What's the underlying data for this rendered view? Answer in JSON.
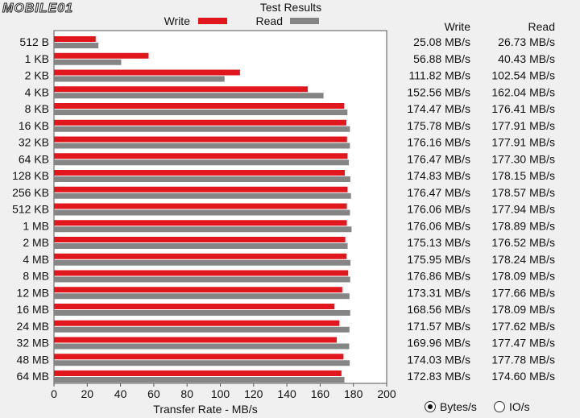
{
  "logo_text": "MOBILE01",
  "chart_data": {
    "type": "bar",
    "orientation": "horizontal",
    "title": "Test Results",
    "xlabel": "Transfer Rate - MB/s",
    "xlim": [
      0,
      200
    ],
    "xticks": [
      "0",
      "20",
      "40",
      "60",
      "80",
      "100",
      "120",
      "140",
      "160",
      "180",
      "200"
    ],
    "legend_placement": "top",
    "categories": [
      "512 B",
      "1 KB",
      "2 KB",
      "4 KB",
      "8 KB",
      "16 KB",
      "32 KB",
      "64 KB",
      "128 KB",
      "256 KB",
      "512 KB",
      "1 MB",
      "2 MB",
      "4 MB",
      "8 MB",
      "12 MB",
      "16 MB",
      "24 MB",
      "32 MB",
      "48 MB",
      "64 MB"
    ],
    "series": [
      {
        "name": "Write",
        "color": "#e0171c",
        "values": [
          25.08,
          56.88,
          111.82,
          152.56,
          174.47,
          175.78,
          176.16,
          176.47,
          174.83,
          176.47,
          176.06,
          176.06,
          175.13,
          175.95,
          176.86,
          173.31,
          168.56,
          171.57,
          169.96,
          174.03,
          172.83
        ],
        "labels": [
          "25.08 MB/s",
          "56.88 MB/s",
          "111.82 MB/s",
          "152.56 MB/s",
          "174.47 MB/s",
          "175.78 MB/s",
          "176.16 MB/s",
          "176.47 MB/s",
          "174.83 MB/s",
          "176.47 MB/s",
          "176.06 MB/s",
          "176.06 MB/s",
          "175.13 MB/s",
          "175.95 MB/s",
          "176.86 MB/s",
          "173.31 MB/s",
          "168.56 MB/s",
          "171.57 MB/s",
          "169.96 MB/s",
          "174.03 MB/s",
          "172.83 MB/s"
        ]
      },
      {
        "name": "Read",
        "color": "#858585",
        "values": [
          26.73,
          40.43,
          102.54,
          162.04,
          176.41,
          177.91,
          177.91,
          177.3,
          178.15,
          178.57,
          177.94,
          178.89,
          176.52,
          178.24,
          178.09,
          177.66,
          178.09,
          177.62,
          177.47,
          177.78,
          174.6
        ],
        "labels": [
          "26.73 MB/s",
          "40.43 MB/s",
          "102.54 MB/s",
          "162.04 MB/s",
          "176.41 MB/s",
          "177.91 MB/s",
          "177.91 MB/s",
          "177.30 MB/s",
          "178.15 MB/s",
          "178.57 MB/s",
          "177.94 MB/s",
          "178.89 MB/s",
          "176.52 MB/s",
          "178.24 MB/s",
          "178.09 MB/s",
          "177.66 MB/s",
          "178.09 MB/s",
          "177.62 MB/s",
          "177.47 MB/s",
          "177.78 MB/s",
          "174.60 MB/s"
        ]
      }
    ]
  },
  "table": {
    "write_header": "Write",
    "read_header": "Read"
  },
  "units": {
    "bytes_label": "Bytes/s",
    "io_label": "IO/s",
    "selected": "Bytes/s"
  }
}
